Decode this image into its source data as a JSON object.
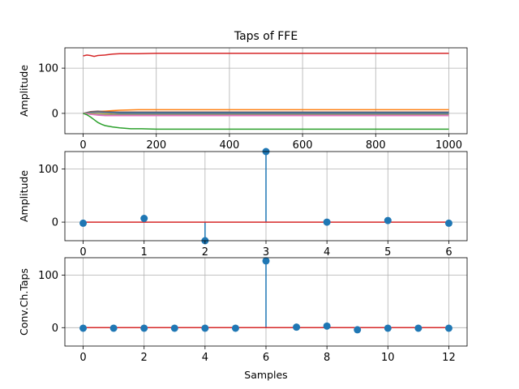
{
  "colors": {
    "series": [
      "#1f77b4",
      "#ff7f0e",
      "#2ca02c",
      "#d62728",
      "#9467bd",
      "#8c564b",
      "#e377c2",
      "#7f7f7f",
      "#bcbd22"
    ],
    "stem": "#1f77b4",
    "baseline": "#d62728",
    "grid": "#b0b0b0",
    "axes": "#000000"
  },
  "chart_data": [
    {
      "type": "line",
      "title": "Taps of FFE",
      "xlabel": "",
      "ylabel": "Amplitude",
      "xlim": [
        -50,
        1050
      ],
      "ylim": [
        -45,
        145
      ],
      "xticks": [
        0,
        200,
        400,
        600,
        800,
        1000
      ],
      "yticks": [
        0,
        100
      ],
      "grid": true,
      "series": [
        {
          "color_index": 3,
          "x": [
            0,
            10,
            20,
            30,
            40,
            60,
            80,
            100,
            150,
            200,
            300,
            400,
            500,
            600,
            700,
            800,
            900,
            1000
          ],
          "y": [
            127,
            129,
            128,
            126,
            128,
            129,
            131,
            132,
            132,
            133,
            133,
            133,
            133,
            133,
            133,
            133,
            133,
            133
          ]
        },
        {
          "color_index": 1,
          "x": [
            0,
            20,
            40,
            60,
            80,
            100,
            150,
            200,
            400,
            600,
            800,
            1000
          ],
          "y": [
            0,
            2,
            4,
            5,
            6,
            7,
            8,
            8,
            8,
            8,
            8,
            8
          ]
        },
        {
          "color_index": 5,
          "x": [
            0,
            20,
            40,
            60,
            100,
            200,
            400,
            600,
            800,
            1000
          ],
          "y": [
            0,
            4,
            5,
            4,
            3,
            3,
            3,
            3,
            3,
            3
          ]
        },
        {
          "color_index": 0,
          "x": [
            0,
            20,
            40,
            60,
            100,
            200,
            400,
            600,
            800,
            1000
          ],
          "y": [
            0,
            2,
            3,
            2,
            1,
            1,
            1,
            1,
            1,
            1
          ]
        },
        {
          "color_index": 7,
          "x": [
            0,
            20,
            40,
            60,
            100,
            200,
            400,
            600,
            800,
            1000
          ],
          "y": [
            0,
            1,
            2,
            1,
            -1,
            -1,
            -1,
            -1,
            -1,
            -1
          ]
        },
        {
          "color_index": 8,
          "x": [
            0,
            20,
            40,
            60,
            100,
            200,
            400,
            600,
            800,
            1000
          ],
          "y": [
            0,
            -1,
            -2,
            -2,
            -3,
            -3,
            -3,
            -3,
            -3,
            -3
          ]
        },
        {
          "color_index": 4,
          "x": [
            0,
            20,
            40,
            60,
            100,
            200,
            400,
            600,
            800,
            1000
          ],
          "y": [
            0,
            -2,
            -3,
            -4,
            -4,
            -4,
            -4,
            -4,
            -4,
            -4
          ]
        },
        {
          "color_index": 6,
          "x": [
            0,
            20,
            40,
            60,
            100,
            200,
            400,
            600,
            800,
            1000
          ],
          "y": [
            0,
            -2,
            -4,
            -5,
            -5,
            -5,
            -5,
            -5,
            -5,
            -5
          ]
        },
        {
          "color_index": 2,
          "x": [
            0,
            10,
            20,
            30,
            40,
            50,
            60,
            80,
            100,
            130,
            160,
            200,
            250,
            300,
            400,
            500,
            600,
            700,
            800,
            900,
            1000
          ],
          "y": [
            0,
            -3,
            -8,
            -14,
            -20,
            -24,
            -27,
            -30,
            -32,
            -34,
            -34,
            -35,
            -35,
            -35,
            -35,
            -35,
            -35,
            -35,
            -35,
            -35,
            -35
          ]
        }
      ]
    },
    {
      "type": "stem",
      "title": "",
      "xlabel": "",
      "ylabel": "Amplitude",
      "xlim": [
        -0.3,
        6.3
      ],
      "ylim": [
        -35,
        133
      ],
      "xticks": [
        0,
        1,
        2,
        3,
        4,
        5,
        6
      ],
      "yticks": [
        0,
        100
      ],
      "grid": true,
      "x": [
        0,
        1,
        2,
        3,
        4,
        5,
        6
      ],
      "y": [
        -2,
        7,
        -35,
        133,
        0,
        3,
        -2
      ]
    },
    {
      "type": "stem",
      "title": "",
      "xlabel": "Samples",
      "ylabel": "Conv.Ch.Taps",
      "xlim": [
        -0.6,
        12.6
      ],
      "ylim": [
        -35,
        133
      ],
      "xticks": [
        0,
        2,
        4,
        6,
        8,
        10,
        12
      ],
      "yticks": [
        0,
        100
      ],
      "grid": true,
      "x": [
        0,
        1,
        2,
        3,
        4,
        5,
        6,
        7,
        8,
        9,
        10,
        11,
        12
      ],
      "y": [
        -1,
        -1,
        -1,
        -1,
        -1,
        -1,
        127,
        1,
        3,
        -4,
        -1,
        -1,
        -1
      ]
    }
  ]
}
